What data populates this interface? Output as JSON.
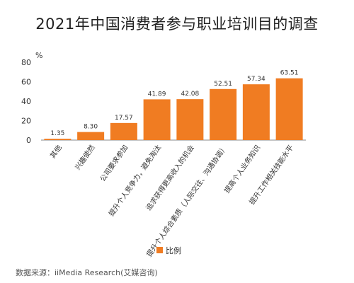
{
  "title": "2021年中国消费者参与职业培训目的调查",
  "source": "数据来源：iiMedia Research(艾媒咨询)",
  "chart_data": {
    "type": "bar",
    "ylabel": "%",
    "ylim": [
      0,
      80
    ],
    "yticks": [
      0,
      20,
      40,
      60,
      80
    ],
    "grid": false,
    "categories": [
      "其他",
      "兴趣使然",
      "公司要求参加",
      "提升个人竞争力，避免淘汰",
      "追求获得更高收入的机会",
      "提升个人综合素质（人际交往、沟通协调）",
      "提高个人业务知识",
      "提升工作相关技能水平"
    ],
    "series": [
      {
        "name": "比例",
        "values": [
          1.35,
          8.3,
          17.57,
          41.89,
          42.08,
          52.51,
          57.34,
          63.51
        ],
        "labels": [
          "1.35",
          "8.30",
          "17.57",
          "41.89",
          "42.08",
          "52.51",
          "57.34",
          "63.51"
        ]
      }
    ],
    "legend_position": "bottom-center",
    "bar_color": "#F07C22"
  }
}
